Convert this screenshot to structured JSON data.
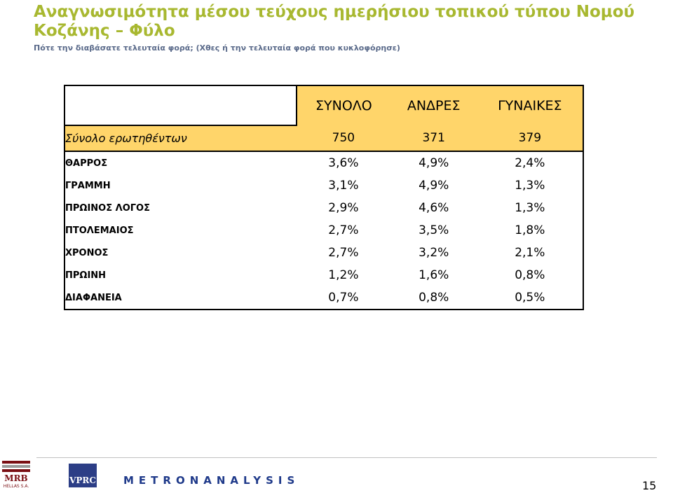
{
  "title": "Αναγνωσιμότητα μέσου τεύχους ημερήσιου τοπικού τύπου Νομού Κοζάνης – Φύλο",
  "subtitle": "Πότε την διαβάσατε τελευταία φορά; (Χθες ή την τελευταία φορά που κυκλοφόρησε)",
  "table": {
    "columns": [
      "ΣΥΝΟΛΟ",
      "ΑΝΔΡΕΣ",
      "ΓΥΝΑΙΚΕΣ"
    ],
    "total_row": {
      "label": "Σύνολο ερωτηθέντων",
      "values": [
        "750",
        "371",
        "379"
      ]
    },
    "rows": [
      {
        "label": "ΘΑΡΡΟΣ",
        "values": [
          "3,6%",
          "4,9%",
          "2,4%"
        ]
      },
      {
        "label": "ΓΡΑΜΜΗ",
        "values": [
          "3,1%",
          "4,9%",
          "1,3%"
        ]
      },
      {
        "label": "ΠΡΩΙΝΟΣ ΛΟΓΟΣ",
        "values": [
          "2,9%",
          "4,6%",
          "1,3%"
        ]
      },
      {
        "label": "ΠΤΟΛΕΜΑΙΟΣ",
        "values": [
          "2,7%",
          "3,5%",
          "1,8%"
        ]
      },
      {
        "label": "ΧΡΟΝΟΣ",
        "values": [
          "2,7%",
          "3,2%",
          "2,1%"
        ]
      },
      {
        "label": "ΠΡΩΙΝΗ",
        "values": [
          "1,2%",
          "1,6%",
          "0,8%"
        ]
      },
      {
        "label": "ΔΙΑΦΑΝΕΙΑ",
        "values": [
          "0,7%",
          "0,8%",
          "0,5%"
        ]
      }
    ]
  },
  "footer": {
    "logo_mrb_top": "MRB",
    "logo_mrb_bottom": "HELLAS S.A.",
    "logo_vprc": "VPRC",
    "logo_metron": "METRONANALYSIS",
    "page_number": "15"
  },
  "colors": {
    "title": "#A8B830",
    "header_fill": "#FFD56A",
    "metron_blue": "#1F3A8A"
  }
}
